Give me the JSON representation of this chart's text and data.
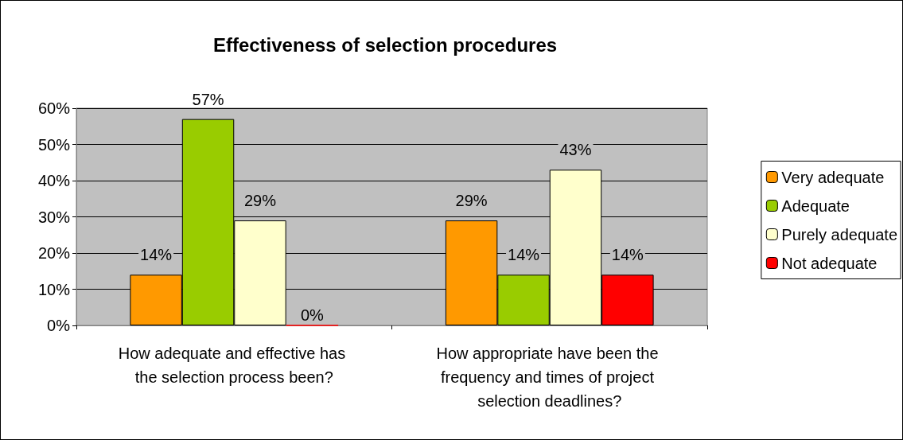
{
  "chart_data": {
    "type": "bar",
    "title": "Effectiveness of selection procedures",
    "categories": [
      "How adequate and effective has the selection process been?",
      "How appropriate have been the frequency and times of project selection deadlines?"
    ],
    "series": [
      {
        "name": "Very adequate",
        "color": "#ff9900",
        "values": [
          14,
          29
        ],
        "value_labels": [
          "14%",
          "29%"
        ]
      },
      {
        "name": "Adequate",
        "color": "#99cc00",
        "values": [
          57,
          14
        ],
        "value_labels": [
          "57%",
          "14%"
        ]
      },
      {
        "name": "Purely adequate",
        "color": "#ffffcc",
        "values": [
          29,
          43
        ],
        "value_labels": [
          "29%",
          "43%"
        ]
      },
      {
        "name": "Not adequate",
        "color": "#ff0000",
        "values": [
          0,
          14
        ],
        "value_labels": [
          "0%",
          "14%"
        ]
      }
    ],
    "ylim": [
      0,
      60
    ],
    "yticks": [
      {
        "value": 0,
        "label": "0%"
      },
      {
        "value": 10,
        "label": "10%"
      },
      {
        "value": 20,
        "label": "20%"
      },
      {
        "value": 30,
        "label": "30%"
      },
      {
        "value": 40,
        "label": "40%"
      },
      {
        "value": 50,
        "label": "50%"
      },
      {
        "value": 60,
        "label": "60%"
      }
    ],
    "grid": "y",
    "legend": "right"
  }
}
